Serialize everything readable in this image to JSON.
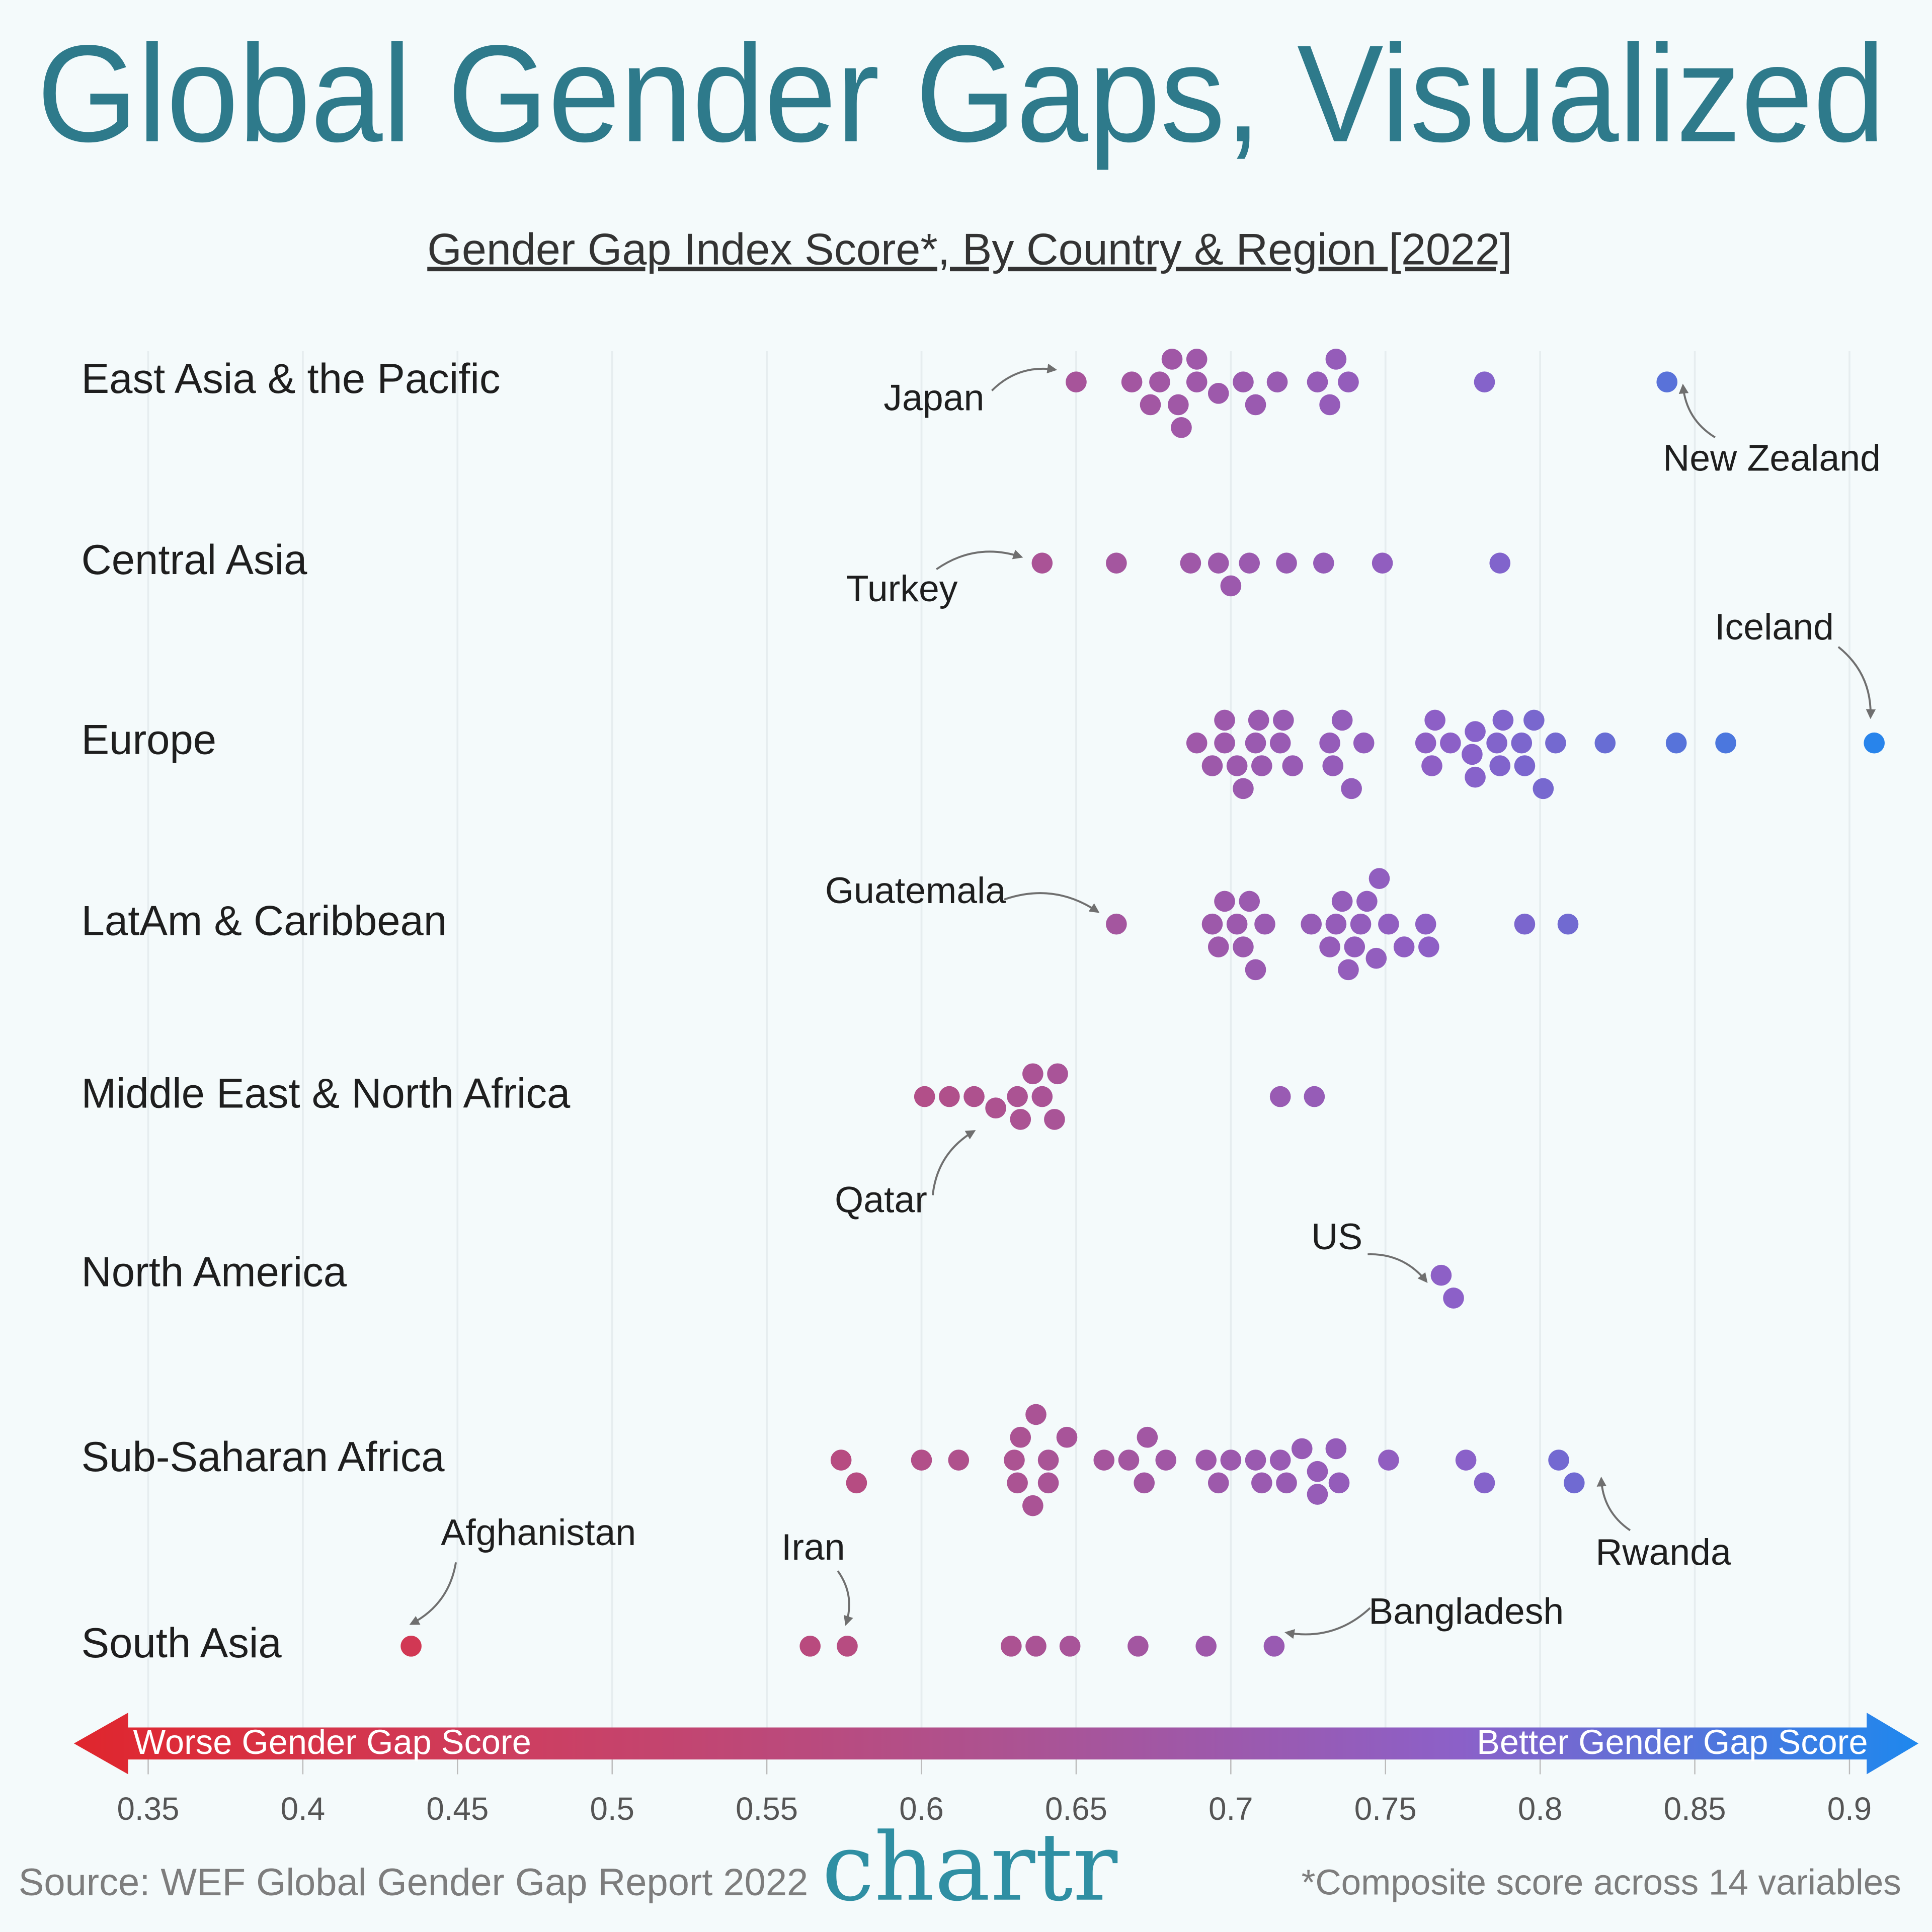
{
  "chart_data": {
    "type": "beeswarm",
    "title": "Global Gender Gaps, Visualized",
    "subtitle": "Gender Gap Index Score*, By Country & Region [2022]",
    "source": "Source: WEF Global Gender Gap Report 2022",
    "logo": "chartr",
    "footnote": "*Composite score across 14 variables",
    "axis_labels": {
      "left": "Worse Gender Gap Score",
      "right": "Better Gender Gap Score"
    },
    "xlim": [
      0.326,
      0.9215
    ],
    "xticks": [
      0.35,
      0.4,
      0.45,
      0.5,
      0.55,
      0.6,
      0.65,
      0.7,
      0.75,
      0.8,
      0.85,
      0.9
    ],
    "grid": true,
    "color_scale": [
      "#e0262d",
      "#cc3f62",
      "#ad5290",
      "#8c60c8",
      "#1e88ee"
    ],
    "series": [
      {
        "name": "East Asia & the Pacific",
        "values": [
          0.65,
          0.668,
          0.674,
          0.677,
          0.681,
          0.683,
          0.684,
          0.689,
          0.689,
          0.696,
          0.704,
          0.708,
          0.715,
          0.728,
          0.732,
          0.734,
          0.738,
          0.782,
          0.841
        ],
        "annotations": [
          {
            "label": "Japan",
            "value": 0.65
          },
          {
            "label": "New Zealand",
            "value": 0.841
          }
        ]
      },
      {
        "name": "Central Asia",
        "values": [
          0.639,
          0.663,
          0.687,
          0.696,
          0.7,
          0.706,
          0.718,
          0.73,
          0.749,
          0.787
        ],
        "annotations": [
          {
            "label": "Turkey",
            "value": 0.639
          }
        ]
      },
      {
        "name": "Europe",
        "values": [
          0.689,
          0.694,
          0.698,
          0.698,
          0.702,
          0.704,
          0.708,
          0.709,
          0.71,
          0.716,
          0.717,
          0.72,
          0.732,
          0.733,
          0.736,
          0.739,
          0.743,
          0.763,
          0.765,
          0.766,
          0.771,
          0.778,
          0.779,
          0.779,
          0.786,
          0.787,
          0.788,
          0.794,
          0.795,
          0.798,
          0.801,
          0.805,
          0.821,
          0.844,
          0.86,
          0.908
        ],
        "annotations": [
          {
            "label": "Iceland",
            "value": 0.908
          }
        ]
      },
      {
        "name": "LatAm & Caribbean",
        "values": [
          0.663,
          0.694,
          0.696,
          0.698,
          0.702,
          0.704,
          0.706,
          0.708,
          0.711,
          0.726,
          0.732,
          0.734,
          0.736,
          0.738,
          0.74,
          0.742,
          0.744,
          0.747,
          0.748,
          0.751,
          0.756,
          0.763,
          0.764,
          0.795,
          0.809
        ],
        "annotations": [
          {
            "label": "Guatemala",
            "value": 0.663
          }
        ]
      },
      {
        "name": "Middle East & North Africa",
        "values": [
          0.601,
          0.609,
          0.617,
          0.624,
          0.631,
          0.632,
          0.636,
          0.639,
          0.643,
          0.644,
          0.716,
          0.727
        ],
        "annotations": [
          {
            "label": "Qatar",
            "value": 0.617
          }
        ]
      },
      {
        "name": "North America",
        "values": [
          0.768,
          0.772
        ],
        "annotations": [
          {
            "label": "US",
            "value": 0.768
          }
        ]
      },
      {
        "name": "Sub-Saharan Africa",
        "values": [
          0.574,
          0.579,
          0.6,
          0.612,
          0.63,
          0.631,
          0.632,
          0.636,
          0.637,
          0.641,
          0.641,
          0.647,
          0.659,
          0.667,
          0.672,
          0.673,
          0.679,
          0.692,
          0.696,
          0.7,
          0.708,
          0.71,
          0.716,
          0.718,
          0.723,
          0.728,
          0.728,
          0.734,
          0.735,
          0.751,
          0.776,
          0.782,
          0.806,
          0.811
        ],
        "annotations": [
          {
            "label": "Rwanda",
            "value": 0.811
          }
        ]
      },
      {
        "name": "South Asia",
        "values": [
          0.435,
          0.564,
          0.576,
          0.629,
          0.637,
          0.648,
          0.67,
          0.692,
          0.714
        ],
        "annotations": [
          {
            "label": "Afghanistan",
            "value": 0.435
          },
          {
            "label": "Iran",
            "value": 0.576
          },
          {
            "label": "Bangladesh",
            "value": 0.714
          }
        ]
      }
    ]
  }
}
